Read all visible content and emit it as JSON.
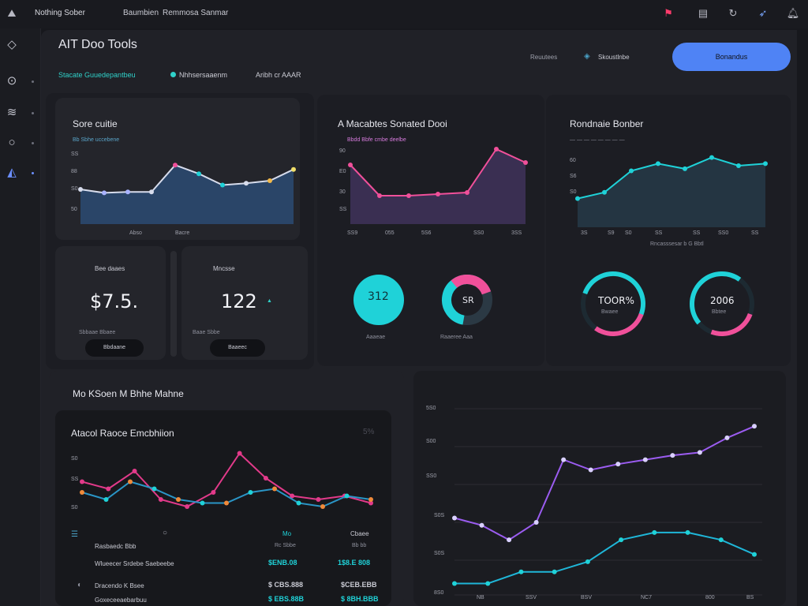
{
  "topbar": {
    "brand": "Nothing Sober",
    "links": [
      "Baumbien",
      "Remmosa Sanmar"
    ]
  },
  "header": {
    "title": "AIT Doo Tools",
    "primary_button": "Bonandus",
    "status_a": "Reuutees",
    "status_b": "Skoustlnbe"
  },
  "tabs": [
    "Stacate Guuedepantbeu",
    "Nhhsersaaenm",
    "Aribh cr AAAR"
  ],
  "cards": {
    "one": {
      "title": "Sore cuitie",
      "legend": "Bb Sbhe uccebene",
      "xlabels": [
        "Abso",
        "Bacre"
      ]
    },
    "two": {
      "title": "A Macabtes Sonated Dooi",
      "legend": "Bbdd Bbfe cmbe deelbe"
    },
    "three": {
      "title": "Rondnaie Bonber",
      "footer": "Rncasssesar b G Bbtl"
    }
  },
  "kpis": {
    "a": {
      "label": "Bee daaes",
      "value": "$7.5.",
      "button": "Bbdaane"
    },
    "b": {
      "label": "Mncsse",
      "value": "122",
      "sub": "Baae Sbbe",
      "button": "Baaeec"
    }
  },
  "donuts": [
    {
      "value": "312",
      "caption": "Aaaeae"
    },
    {
      "value": "SR",
      "caption": "Raaeree Aaa"
    },
    {
      "value": "TOOR%",
      "caption": "Bwaee"
    },
    {
      "value": "2006",
      "caption": "Bbtee"
    }
  ],
  "bottom": {
    "section_title": "Mo KSoen M Bhhe Mahne",
    "panel_title": "Atacol Raoce Emcbhiion",
    "panel_badge": "5%",
    "table": {
      "headers": [
        "Rasbaedc Bbb",
        "Mo",
        "Cbaee"
      ],
      "rows": [
        {
          "label": "Wlueecer Srdebe Saebeebe",
          "a": "$ENB.08",
          "b": "1$8.E 808"
        },
        {
          "label": "Dracendo K Bsee",
          "a": "$ CBS.888",
          "b": "$CEB.EBB"
        },
        {
          "label": "Goxeceeaebarbuu",
          "a": "$ EBS.88B",
          "b": "$ 8BH.BBB"
        }
      ]
    }
  },
  "chart_data": [
    {
      "type": "area",
      "values": [
        40,
        36,
        37,
        37,
        68,
        58,
        45,
        47,
        50,
        63
      ],
      "ylim": [
        0,
        80
      ],
      "yticks": [
        "SS",
        "88",
        "S0",
        "50"
      ],
      "xticks": [
        "Abso",
        "Bacre"
      ]
    },
    {
      "type": "area",
      "values": [
        75,
        36,
        36,
        38,
        40,
        95,
        78
      ],
      "ylim": [
        0,
        100
      ],
      "yticks": [
        "90",
        "E0",
        "30",
        "SS"
      ],
      "xticks": [
        "SS9",
        "055",
        "5S6",
        "SS0",
        "3SS"
      ]
    },
    {
      "type": "area",
      "values": [
        28,
        34,
        55,
        62,
        57,
        68,
        60,
        62
      ],
      "ylim": [
        0,
        80
      ],
      "yticks": [
        "60",
        "S6",
        "S0"
      ],
      "xticks": [
        "3S",
        "S9",
        "S0",
        "SS",
        "SS",
        "SS0",
        "SS"
      ]
    },
    {
      "type": "line",
      "series": [
        {
          "values": [
            55,
            45,
            70,
            30,
            20,
            40,
            95,
            60,
            35,
            30,
            35,
            25
          ]
        },
        {
          "values": [
            40,
            30,
            55,
            45,
            30,
            25,
            25,
            40,
            45,
            25,
            20,
            35,
            30
          ]
        }
      ],
      "ylim": [
        0,
        100
      ],
      "yticks": [
        "S0",
        "SS",
        "S0"
      ]
    },
    {
      "type": "line",
      "series": [
        {
          "values": [
            55,
            50,
            40,
            52,
            95,
            88,
            92,
            95,
            98,
            100,
            110,
            118
          ]
        },
        {
          "values": [
            10,
            10,
            18,
            18,
            25,
            40,
            45,
            45,
            40,
            30
          ]
        }
      ],
      "ylim": [
        0,
        130
      ],
      "yticks": [
        "5S0",
        "S00",
        "SS0",
        "S0S",
        "S0S",
        "8S0"
      ],
      "xticks": [
        "NB",
        "SSV",
        "BSV",
        "NC7",
        "800",
        "BS"
      ]
    }
  ]
}
